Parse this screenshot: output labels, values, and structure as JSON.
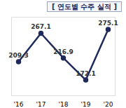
{
  "chart_data": {
    "type": "line",
    "title": "[ 연도별 수주 실적 ]",
    "categories": [
      "'16",
      "'17",
      "'18",
      "'19",
      "'20"
    ],
    "values": [
      209.3,
      267.1,
      216.9,
      172.1,
      275.1
    ],
    "color": "#1f2a5c",
    "ylim": [
      140,
      300
    ],
    "tick_labels": "x",
    "grid": false,
    "data_labels": true,
    "marker": "circle"
  }
}
